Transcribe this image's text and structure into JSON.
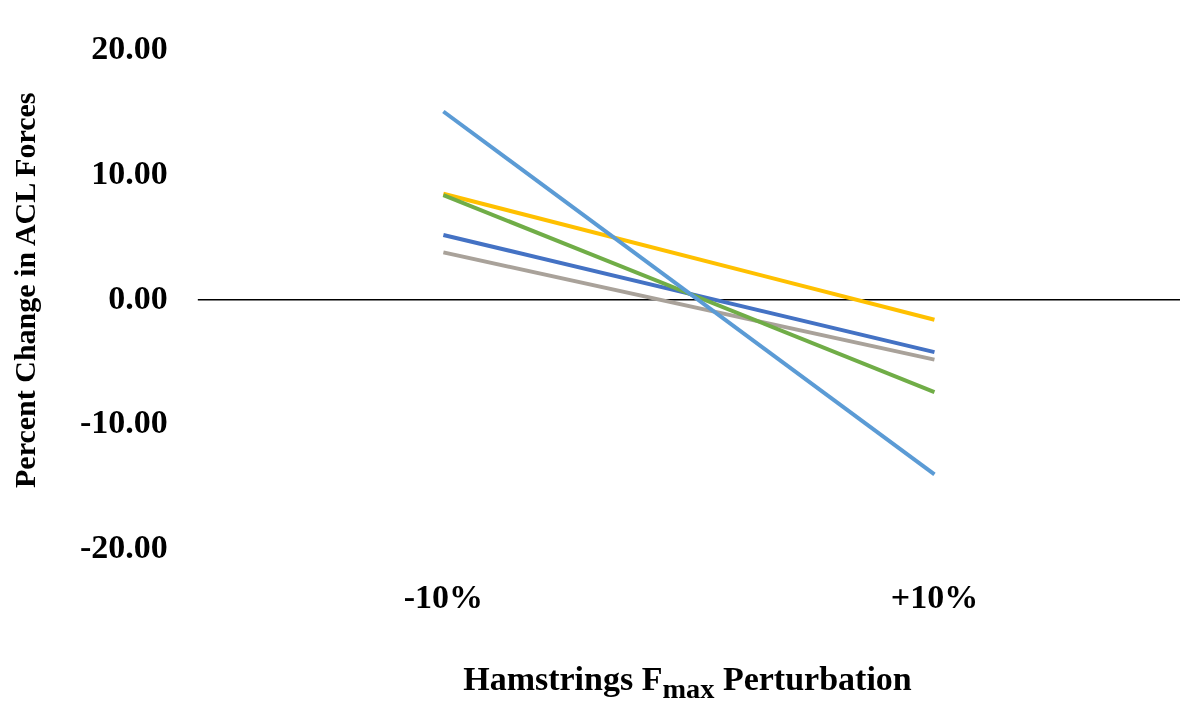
{
  "chart_data": {
    "type": "line",
    "xlabel": "Hamstrings F$_{max}$ Perturbation",
    "ylabel": "Percent Change in ACL Forces",
    "categories": [
      "-10%",
      "+10%"
    ],
    "series": [
      {
        "color": "#5b9bd5",
        "values": [
          15.1,
          -14.0
        ]
      },
      {
        "color": "#70ad47",
        "values": [
          8.4,
          -7.4
        ]
      },
      {
        "color": "#4472c4",
        "values": [
          5.2,
          -4.2
        ]
      },
      {
        "color": "#a9a29a",
        "values": [
          3.8,
          -4.8
        ]
      },
      {
        "color": "#ffc000",
        "values": [
          8.5,
          -1.6
        ]
      }
    ],
    "ylim": [
      -20,
      20
    ],
    "yticks": [
      {
        "value": -20,
        "label": "-20.00"
      },
      {
        "value": -10,
        "label": "-10.00"
      },
      {
        "value": 0,
        "label": "0.00"
      },
      {
        "value": 10,
        "label": "10.00"
      },
      {
        "value": 20,
        "label": "20.00"
      }
    ],
    "ref_lines": [
      {
        "axis": "y",
        "value": 0,
        "color": "#000000"
      }
    ],
    "grid": false,
    "legend": false,
    "marker": "none",
    "line_style": "solid"
  }
}
